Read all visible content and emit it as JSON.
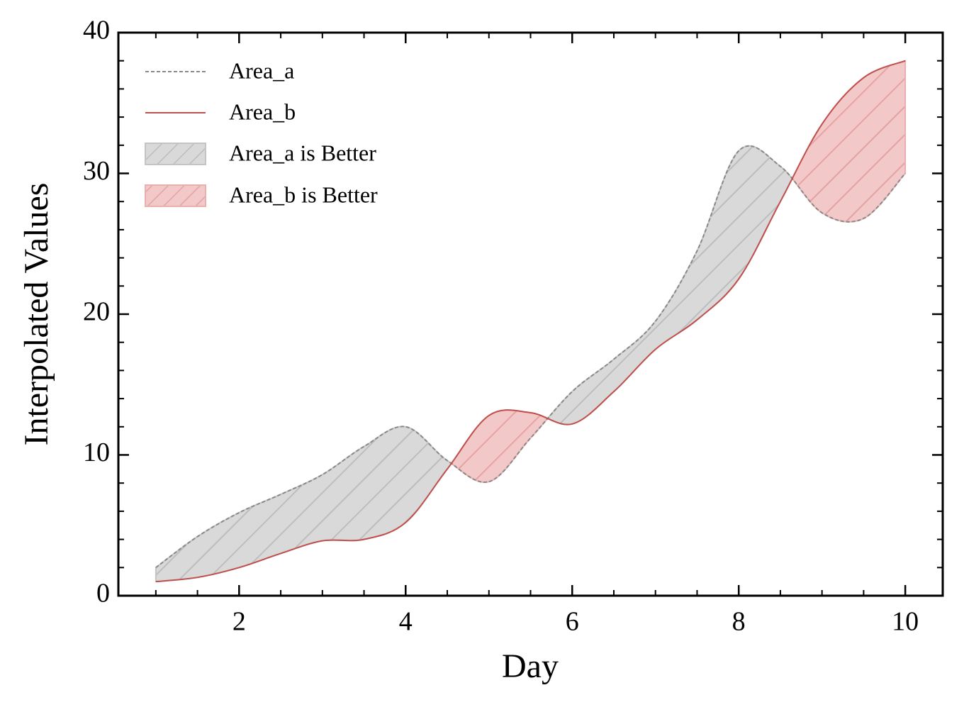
{
  "chart_data": {
    "type": "line",
    "xlabel": "Day",
    "ylabel": "Interpolated Values",
    "x": [
      1,
      1.5,
      2,
      2.5,
      3,
      3.5,
      4,
      4.5,
      5,
      5.5,
      6,
      6.5,
      7,
      7.5,
      8,
      8.5,
      9,
      9.5,
      10
    ],
    "series": [
      {
        "name": "Area_a",
        "color": "#888888",
        "dash": true,
        "values": [
          2,
          4.2,
          5.9,
          7.2,
          8.6,
          10.6,
          12,
          9.6,
          8.1,
          11.2,
          14.5,
          16.8,
          19.5,
          24.5,
          31.6,
          30.5,
          27.2,
          26.8,
          30
        ]
      },
      {
        "name": "Area_b",
        "color": "#c0504d",
        "dash": false,
        "values": [
          1,
          1.3,
          2,
          3,
          3.9,
          4,
          5.2,
          9,
          12.8,
          13,
          12.2,
          14.5,
          17.5,
          19.6,
          22.5,
          28,
          33.5,
          36.8,
          38
        ]
      }
    ],
    "fills": [
      {
        "name": "Area_a is Better",
        "color": "#d9d9d9",
        "hatch": "#bdbdbd",
        "edge": "#c4c4c4"
      },
      {
        "name": "Area_b is Better",
        "color": "#f2c9c8",
        "hatch": "#e3a3a2",
        "edge": "#e8b0af"
      }
    ],
    "xlim": [
      0.55,
      10.45
    ],
    "ylim": [
      0,
      40
    ],
    "xticks": [
      2,
      4,
      6,
      8,
      10
    ],
    "yticks": [
      0,
      10,
      20,
      30,
      40
    ],
    "legend": "upper left"
  }
}
